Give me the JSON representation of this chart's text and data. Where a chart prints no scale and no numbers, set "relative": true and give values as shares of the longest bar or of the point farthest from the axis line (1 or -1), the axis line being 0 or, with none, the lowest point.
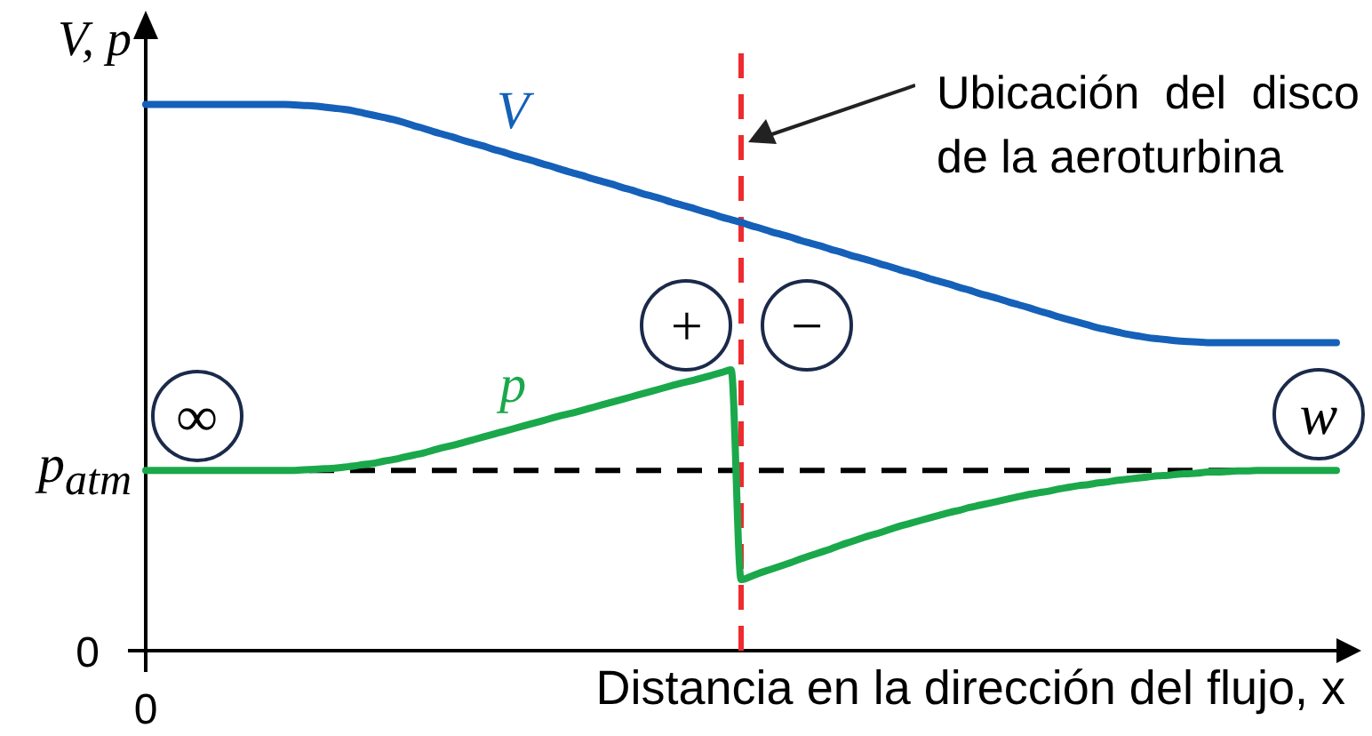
{
  "chart_data": {
    "type": "line",
    "xlabel": "Distancia en la dirección del flujo, x",
    "ylabel": "V, p",
    "relative": true,
    "categories": [
      null,
      null,
      null,
      null,
      null,
      null,
      null,
      null,
      null,
      null,
      null,
      null,
      null,
      null,
      null,
      null,
      null,
      null,
      null,
      null,
      null,
      null,
      null,
      null,
      null,
      null,
      null,
      null,
      null,
      null,
      null,
      null,
      null,
      null,
      null,
      null,
      null,
      null,
      null,
      null,
      null,
      null,
      null,
      null,
      null,
      null,
      null,
      null,
      null,
      null,
      null,
      null,
      null,
      null,
      null,
      null,
      null,
      null,
      null,
      null,
      null,
      null,
      null,
      null,
      null,
      null,
      null,
      null,
      null,
      null,
      null,
      null,
      null,
      null,
      null,
      null,
      null,
      null,
      null,
      null,
      null,
      null,
      null,
      null,
      null,
      null,
      null,
      null,
      null,
      null,
      null,
      null,
      null,
      null,
      null,
      null,
      null,
      null,
      null,
      null,
      null,
      null,
      null,
      null,
      null,
      null,
      null,
      null,
      null,
      null,
      null,
      null,
      null,
      null,
      null,
      null,
      null,
      null,
      null,
      null,
      null
    ],
    "series": [
      {
        "name": "V",
        "color": "#1560b8",
        "values": [
          1,
          1,
          1,
          1,
          1,
          1,
          1,
          1,
          1,
          1,
          1,
          1,
          1,
          1,
          1,
          0.999,
          0.998,
          0.997,
          0.995,
          0.993,
          0.991,
          0.988,
          0.984,
          0.98,
          0.976,
          0.972,
          0.967,
          0.961,
          0.956,
          0.95,
          0.945,
          0.94,
          0.934,
          0.929,
          0.924,
          0.918,
          0.913,
          0.907,
          0.902,
          0.897,
          0.891,
          0.886,
          0.88,
          0.875,
          0.87,
          0.864,
          0.859,
          0.854,
          0.848,
          0.843,
          0.837,
          0.832,
          0.827,
          0.821,
          0.816,
          0.811,
          0.805,
          0.8,
          0.794,
          0.789,
          0.784,
          0.778,
          0.773,
          0.767,
          0.762,
          0.757,
          0.751,
          0.746,
          0.741,
          0.735,
          0.73,
          0.724,
          0.719,
          0.714,
          0.708,
          0.703,
          0.697,
          0.692,
          0.687,
          0.681,
          0.676,
          0.671,
          0.665,
          0.66,
          0.654,
          0.649,
          0.644,
          0.638,
          0.633,
          0.628,
          0.622,
          0.617,
          0.611,
          0.606,
          0.601,
          0.596,
          0.591,
          0.587,
          0.583,
          0.579,
          0.576,
          0.573,
          0.571,
          0.569,
          0.567,
          0.566,
          0.565,
          0.564,
          0.564,
          0.564,
          0.564,
          0.564,
          0.564,
          0.564,
          0.564,
          0.564,
          0.564,
          0.564,
          0.564,
          0.564,
          0.564
        ]
      },
      {
        "name": "p",
        "color": "#1aa84b",
        "values": [
          0.33,
          0.33,
          0.33,
          0.33,
          0.33,
          0.33,
          0.33,
          0.33,
          0.33,
          0.33,
          0.33,
          0.33,
          0.33,
          0.33,
          0.33,
          0.33,
          0.331,
          0.332,
          0.333,
          0.334,
          0.336,
          0.338,
          0.341,
          0.343,
          0.347,
          0.35,
          0.354,
          0.358,
          0.362,
          0.367,
          0.372,
          0.376,
          0.381,
          0.386,
          0.391,
          0.396,
          0.401,
          0.406,
          0.411,
          0.416,
          0.421,
          0.426,
          0.431,
          0.435,
          0.44,
          0.445,
          0.45,
          0.455,
          0.46,
          0.465,
          0.47,
          0.475,
          0.48,
          0.485,
          0.49,
          0.494,
          0.499,
          0.504,
          0.509,
          0.514,
          0.13,
          0.136,
          0.143,
          0.149,
          0.155,
          0.161,
          0.168,
          0.174,
          0.18,
          0.186,
          0.193,
          0.199,
          0.205,
          0.211,
          0.216,
          0.222,
          0.228,
          0.233,
          0.238,
          0.243,
          0.248,
          0.253,
          0.257,
          0.262,
          0.266,
          0.27,
          0.274,
          0.278,
          0.282,
          0.286,
          0.289,
          0.292,
          0.296,
          0.299,
          0.302,
          0.304,
          0.307,
          0.309,
          0.312,
          0.314,
          0.316,
          0.318,
          0.32,
          0.321,
          0.323,
          0.324,
          0.325,
          0.327,
          0.327,
          0.328,
          0.329,
          0.329,
          0.33,
          0.33,
          0.33,
          0.33,
          0.33,
          0.33,
          0.33,
          0.33,
          0.33
        ]
      }
    ],
    "ref_lines": [
      {
        "axis": "y",
        "value": 0.33,
        "label": "p$_{atm}$",
        "color": "#000000",
        "line_style": "dashed"
      }
    ],
    "annotations": [
      "0",
      "0",
      "∞",
      "+",
      "−",
      "w",
      "Ubicación del disco de la aeroturbina"
    ]
  }
}
